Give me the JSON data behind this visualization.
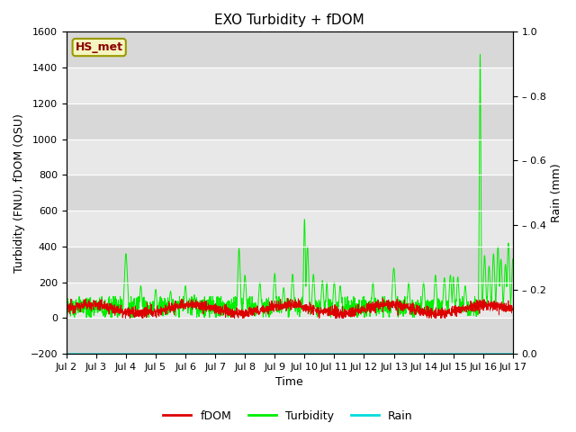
{
  "title": "EXO Turbidity + fDOM",
  "xlabel": "Time",
  "ylabel_left": "Turbidity (FNU), fDOM (QSU)",
  "ylabel_right": "Rain (mm)",
  "ylim_left": [
    -200,
    1600
  ],
  "ylim_right": [
    0.0,
    1.0
  ],
  "xlim": [
    0,
    15
  ],
  "x_tick_labels": [
    "Jul 2",
    "Jul 3",
    "Jul 4",
    "Jul 5",
    "Jul 6",
    "Jul 7",
    "Jul 8",
    "Jul 9",
    "Jul 10",
    "Jul 11",
    "Jul 12",
    "Jul 13",
    "Jul 14",
    "Jul 15",
    "Jul 16",
    "Jul 17"
  ],
  "station_label": "HS_met",
  "background_color": "#ffffff",
  "plot_bg_color": "#e8e8e8",
  "fdom_color": "#dd0000",
  "turbidity_color": "#00ee00",
  "rain_color": "#00dddd",
  "legend_labels": [
    "fDOM",
    "Turbidity",
    "Rain"
  ],
  "title_fontsize": 11,
  "axis_fontsize": 9,
  "tick_fontsize": 8,
  "y_left_ticks": [
    -200,
    0,
    200,
    400,
    600,
    800,
    1000,
    1200,
    1400,
    1600
  ],
  "y_right_ticks": [
    0.0,
    0.2,
    0.4,
    0.6,
    0.8,
    1.0
  ],
  "y_right_tick_labels": [
    "0.0",
    "– 0.2",
    "– 0.4",
    "– 0.6",
    "– 0.8",
    "1.0"
  ],
  "grid_color": "#ffffff",
  "band_colors": [
    "#d8d8d8",
    "#e8e8e8"
  ]
}
